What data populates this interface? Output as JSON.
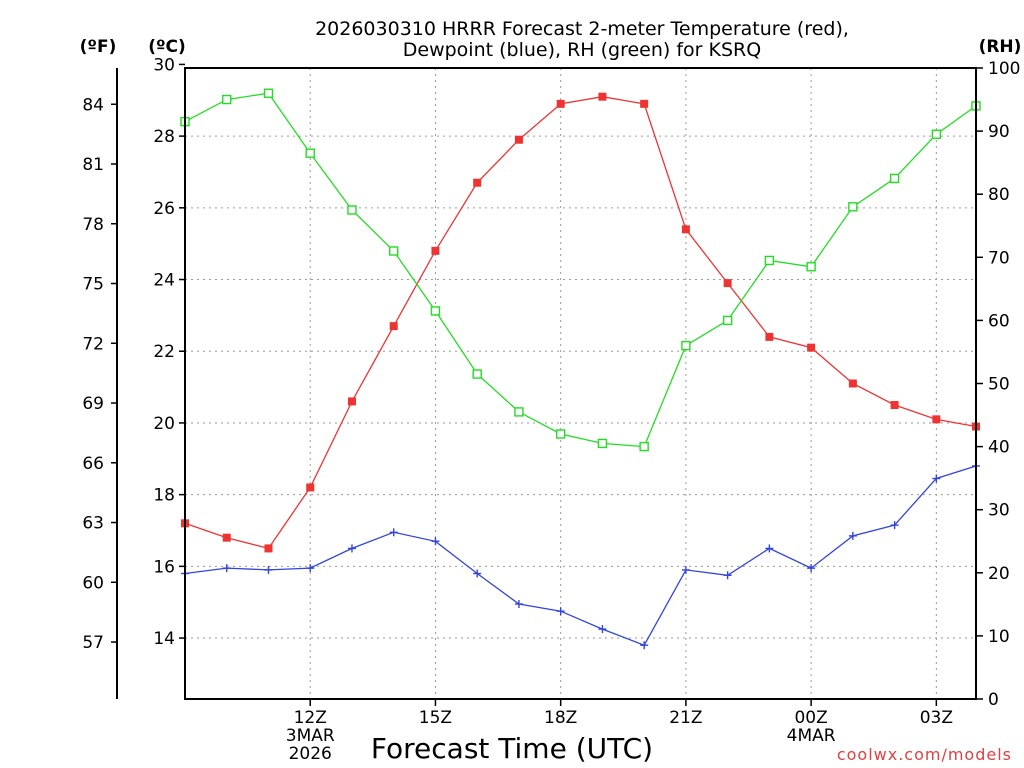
{
  "chart_data": {
    "type": "line",
    "title": [
      "2026030310 HRRR Forecast 2-meter Temperature (red),",
      "Dewpoint (blue), RH (green) for KSRQ"
    ],
    "xlabel": "Forecast Time (UTC)",
    "units": {
      "fahrenheit": "(ºF)",
      "celsius": "(ºC)",
      "rh": "(RH)"
    },
    "x_hours": [
      9,
      10,
      11,
      12,
      13,
      14,
      15,
      16,
      17,
      18,
      19,
      20,
      21,
      22,
      23,
      24,
      25,
      26,
      27,
      27.95
    ],
    "x_range": [
      9,
      27.95
    ],
    "x_ticks": [
      {
        "hour": 12,
        "lines": [
          "12Z",
          "3MAR",
          "2026"
        ]
      },
      {
        "hour": 15,
        "lines": [
          "15Z"
        ]
      },
      {
        "hour": 18,
        "lines": [
          "18Z"
        ]
      },
      {
        "hour": 21,
        "lines": [
          "21Z"
        ]
      },
      {
        "hour": 24,
        "lines": [
          "00Z",
          "4MAR"
        ]
      },
      {
        "hour": 27,
        "lines": [
          "03Z"
        ]
      }
    ],
    "y_left_c": {
      "range": [
        12.3,
        29.9
      ],
      "ticks": [
        14,
        16,
        18,
        20,
        22,
        24,
        26,
        28,
        30
      ]
    },
    "y_left_f": {
      "ticks": [
        57,
        60,
        63,
        66,
        69,
        72,
        75,
        78,
        81,
        84
      ]
    },
    "y_right_rh": {
      "range": [
        0,
        100
      ],
      "ticks": [
        0,
        10,
        20,
        30,
        40,
        50,
        60,
        70,
        80,
        90,
        100
      ]
    },
    "series": [
      {
        "name": "Temperature (°C)",
        "color": "#ee3333",
        "marker": "filled-square",
        "values": [
          17.2,
          16.8,
          16.5,
          18.2,
          20.6,
          22.7,
          24.8,
          26.7,
          27.9,
          28.9,
          29.1,
          28.9,
          25.4,
          23.9,
          22.4,
          22.1,
          21.1,
          20.5,
          20.1,
          19.9
        ]
      },
      {
        "name": "Dewpoint (°C)",
        "color": "#3344dd",
        "marker": "plus",
        "values": [
          15.8,
          15.95,
          15.9,
          15.95,
          16.5,
          16.95,
          16.7,
          15.8,
          14.95,
          14.75,
          14.25,
          13.8,
          15.9,
          15.75,
          16.5,
          15.95,
          16.85,
          17.15,
          18.45,
          18.8
        ]
      },
      {
        "name": "RH (%)",
        "color": "#22dd22",
        "marker": "open-square",
        "axis": "right",
        "values": [
          91.5,
          95,
          96,
          86.5,
          77.5,
          71,
          61.5,
          51.5,
          45.5,
          42,
          40.5,
          40,
          56,
          60,
          69.5,
          68.5,
          78,
          82.5,
          89.5,
          94
        ]
      }
    ]
  },
  "watermark": "coolwx.com/models"
}
